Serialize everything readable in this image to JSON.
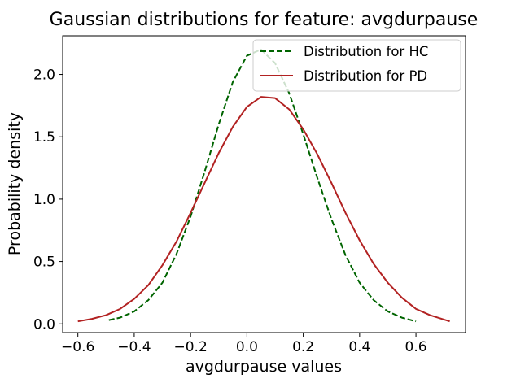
{
  "chart_data": {
    "type": "line",
    "title": "Gaussian distributions for feature: avgdurpause",
    "xlabel": "avgdurpause values",
    "ylabel": "Probability density",
    "xlim": [
      -0.654,
      0.776
    ],
    "ylim": [
      -0.07,
      2.31
    ],
    "xticks": [
      -0.6,
      -0.4,
      -0.2,
      0.0,
      0.2,
      0.4,
      0.6
    ],
    "xtick_labels": [
      "−0.6",
      "−0.4",
      "−0.2",
      "0.0",
      "0.2",
      "0.4",
      "0.6"
    ],
    "yticks": [
      0.0,
      0.5,
      1.0,
      1.5,
      2.0
    ],
    "ytick_labels": [
      "0.0",
      "0.5",
      "1.0",
      "1.5",
      "2.0"
    ],
    "grid": false,
    "legend_position": "top-right",
    "series": [
      {
        "name": "Distribution for HC",
        "color": "#006400",
        "style": "dashed",
        "x": [
          -0.49,
          -0.45,
          -0.4,
          -0.35,
          -0.3,
          -0.25,
          -0.2,
          -0.15,
          -0.1,
          -0.05,
          0.0,
          0.05,
          0.1,
          0.15,
          0.2,
          0.25,
          0.3,
          0.35,
          0.4,
          0.45,
          0.5,
          0.55,
          0.6
        ],
        "y": [
          0.03,
          0.05,
          0.1,
          0.19,
          0.33,
          0.56,
          0.86,
          1.22,
          1.6,
          1.94,
          2.15,
          2.2,
          2.09,
          1.85,
          1.52,
          1.17,
          0.84,
          0.55,
          0.33,
          0.19,
          0.1,
          0.05,
          0.02
        ]
      },
      {
        "name": "Distribution for PD",
        "color": "#b22222",
        "style": "solid",
        "x": [
          -0.6,
          -0.55,
          -0.5,
          -0.45,
          -0.4,
          -0.35,
          -0.3,
          -0.25,
          -0.2,
          -0.15,
          -0.1,
          -0.05,
          0.0,
          0.05,
          0.1,
          0.15,
          0.2,
          0.25,
          0.3,
          0.35,
          0.4,
          0.45,
          0.5,
          0.55,
          0.6,
          0.65,
          0.72
        ],
        "y": [
          0.02,
          0.04,
          0.07,
          0.12,
          0.2,
          0.31,
          0.47,
          0.66,
          0.89,
          1.13,
          1.37,
          1.58,
          1.74,
          1.82,
          1.81,
          1.72,
          1.56,
          1.36,
          1.13,
          0.89,
          0.67,
          0.48,
          0.33,
          0.21,
          0.12,
          0.07,
          0.02
        ]
      }
    ]
  }
}
